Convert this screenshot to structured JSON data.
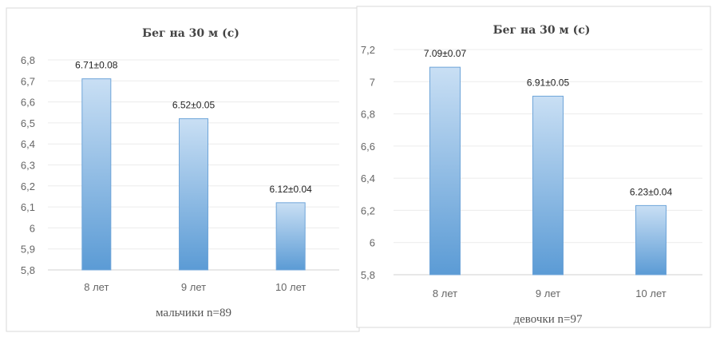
{
  "chart_data": [
    {
      "type": "bar",
      "title": "Бег на 30 м (с)",
      "xlabel": "мальчики n=89",
      "ylabel": "",
      "categories": [
        "8 лет",
        "9 лет",
        "10 лет"
      ],
      "values": [
        6.71,
        6.52,
        6.12
      ],
      "data_labels": [
        "6.71±0.08",
        "6.52±0.05",
        "6.12±0.04"
      ],
      "ylim": [
        5.8,
        6.8
      ],
      "yticks": [
        5.8,
        5.9,
        6.0,
        6.1,
        6.2,
        6.3,
        6.4,
        6.5,
        6.6,
        6.7,
        6.8
      ],
      "ytick_labels": [
        "5,8",
        "5,9",
        "6",
        "6,1",
        "6,2",
        "6,3",
        "6,4",
        "6,5",
        "6,6",
        "6,7",
        "6,8"
      ],
      "grid": true,
      "bar_color": "#5b9bd5"
    },
    {
      "type": "bar",
      "title": "Бег на 30 м (с)",
      "xlabel": "девочки n=97",
      "ylabel": "",
      "categories": [
        "8 лет",
        "9 лет",
        "10 лет"
      ],
      "values": [
        7.09,
        6.91,
        6.23
      ],
      "data_labels": [
        "7.09±0.07",
        "6.91±0.05",
        "6.23±0.04"
      ],
      "ylim": [
        5.8,
        7.2
      ],
      "yticks": [
        5.8,
        6.0,
        6.2,
        6.4,
        6.6,
        6.8,
        7.0,
        7.2
      ],
      "ytick_labels": [
        "5,8",
        "6",
        "6,2",
        "6,4",
        "6,6",
        "6,8",
        "7",
        "7,2"
      ],
      "grid": true,
      "bar_color": "#5b9bd5"
    }
  ]
}
